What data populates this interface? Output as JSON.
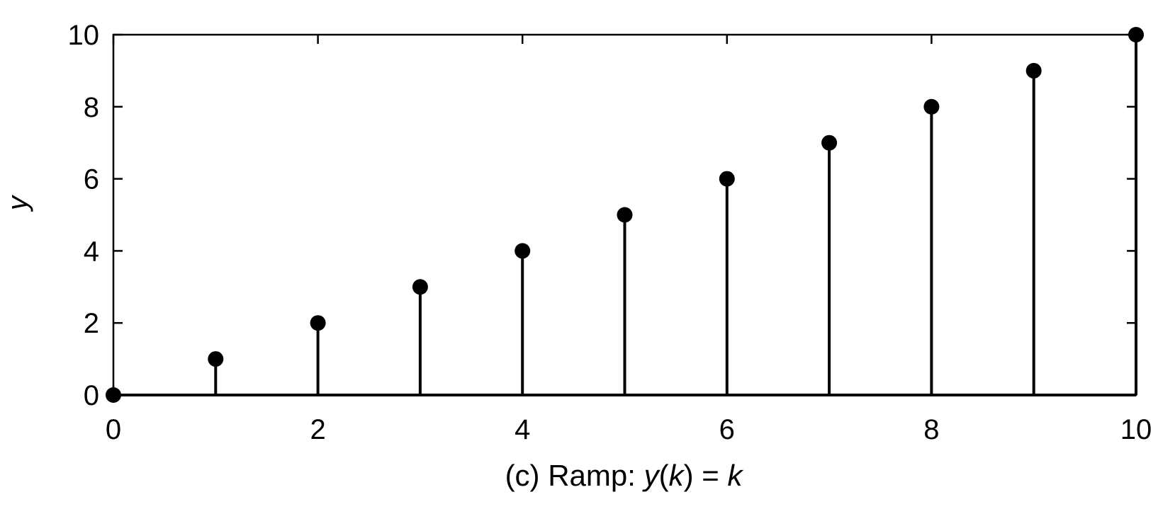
{
  "chart_data": {
    "type": "stem",
    "x": [
      0,
      1,
      2,
      3,
      4,
      5,
      6,
      7,
      8,
      9,
      10
    ],
    "y": [
      0,
      1,
      2,
      3,
      4,
      5,
      6,
      7,
      8,
      9,
      10
    ],
    "xlim": [
      0,
      10
    ],
    "ylim": [
      0,
      10
    ],
    "xticks": [
      0,
      2,
      4,
      6,
      8,
      10
    ],
    "yticks": [
      0,
      2,
      4,
      6,
      8,
      10
    ],
    "xtick_labels": [
      "0",
      "2",
      "4",
      "6",
      "8",
      "10"
    ],
    "ytick_labels": [
      "0",
      "2",
      "4",
      "6",
      "8",
      "10"
    ],
    "xlabel": "(c) Ramp: y(k) = k",
    "xlabel_parts": {
      "prefix": "(c) Ramp: ",
      "y": "y",
      "open_paren": "(",
      "k1": "k",
      "close_eq": ") = ",
      "k2": "k"
    },
    "ylabel": "y",
    "grid": false,
    "colors": {
      "axes": "#000000",
      "stems": "#000000",
      "markers": "#000000"
    }
  }
}
